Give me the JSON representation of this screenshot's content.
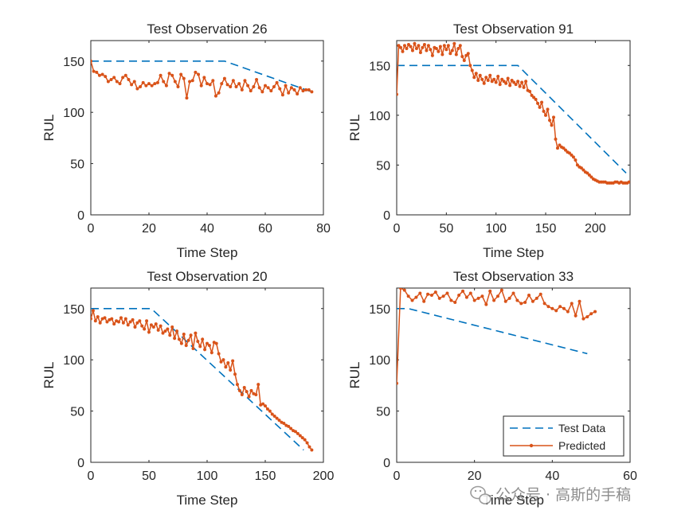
{
  "colors": {
    "test": "#0072BD",
    "predicted": "#D95319",
    "axes": "#262626"
  },
  "legend": {
    "test_label": "Test Data",
    "predicted_label": "Predicted",
    "position": "bottom-right"
  },
  "watermark": {
    "text": "公众号 · 高斯的手稿",
    "icon": "wechat-icon"
  },
  "chart_data": [
    {
      "type": "line",
      "title": "Test Observation 26",
      "xlabel": "Time Step",
      "ylabel": "RUL",
      "xlim": [
        0,
        80
      ],
      "ylim": [
        0,
        170
      ],
      "xticks": [
        0,
        20,
        40,
        60,
        80
      ],
      "yticks": [
        0,
        50,
        100,
        150
      ],
      "series": [
        {
          "name": "Test Data",
          "style": "dashed",
          "x": [
            0,
            46,
            76
          ],
          "y": [
            150,
            150,
            120
          ]
        },
        {
          "name": "Predicted",
          "style": "line-dot",
          "x_start": 0,
          "x_step": 1,
          "y": [
            150,
            140,
            139,
            136,
            137,
            135,
            130,
            132,
            134,
            130,
            128,
            134,
            136,
            132,
            127,
            130,
            123,
            125,
            129,
            126,
            128,
            126,
            128,
            129,
            136,
            130,
            126,
            138,
            136,
            130,
            125,
            137,
            133,
            114,
            130,
            131,
            139,
            137,
            126,
            134,
            128,
            127,
            131,
            116,
            119,
            128,
            133,
            127,
            125,
            131,
            125,
            128,
            122,
            131,
            126,
            121,
            125,
            132,
            124,
            120,
            126,
            124,
            121,
            125,
            129,
            123,
            117,
            126,
            119,
            124,
            122,
            118,
            124,
            121,
            122,
            122,
            120
          ]
        }
      ]
    },
    {
      "type": "line",
      "title": "Test Observation 91",
      "xlabel": "Time Step",
      "ylabel": "RUL",
      "xlim": [
        0,
        235
      ],
      "ylim": [
        0,
        175
      ],
      "xticks": [
        0,
        50,
        100,
        150,
        200
      ],
      "yticks": [
        0,
        50,
        100,
        150
      ],
      "series": [
        {
          "name": "Test Data",
          "style": "dashed",
          "x": [
            0,
            122,
            231
          ],
          "y": [
            150,
            150,
            42
          ]
        },
        {
          "name": "Predicted",
          "style": "line-dot",
          "x_start": 0,
          "x_step": 2,
          "y": [
            121,
            170,
            168,
            164,
            170,
            167,
            171,
            169,
            165,
            172,
            167,
            170,
            163,
            168,
            171,
            165,
            170,
            166,
            160,
            168,
            167,
            164,
            169,
            161,
            170,
            166,
            170,
            162,
            165,
            172,
            161,
            167,
            170,
            159,
            155,
            160,
            162,
            150,
            145,
            138,
            142,
            135,
            140,
            136,
            132,
            138,
            135,
            140,
            134,
            136,
            133,
            139,
            131,
            136,
            134,
            132,
            137,
            130,
            135,
            133,
            131,
            134,
            129,
            133,
            128,
            134,
            125,
            124,
            120,
            118,
            116,
            112,
            108,
            113,
            104,
            100,
            106,
            95,
            90,
            98,
            76,
            67,
            70,
            68,
            67,
            65,
            63,
            62,
            60,
            58,
            55,
            50,
            48,
            47,
            45,
            43,
            42,
            40,
            38,
            36,
            35,
            34,
            33,
            33,
            33,
            33,
            32,
            32,
            32,
            32,
            33,
            33,
            32,
            33,
            32,
            32,
            32,
            33
          ]
        }
      ]
    },
    {
      "type": "line",
      "title": "Test Observation 20",
      "xlabel": "Time Step",
      "ylabel": "RUL",
      "xlim": [
        0,
        200
      ],
      "ylim": [
        0,
        170
      ],
      "xticks": [
        0,
        50,
        100,
        150,
        200
      ],
      "yticks": [
        0,
        50,
        100,
        150
      ],
      "series": [
        {
          "name": "Test Data",
          "style": "dashed",
          "x": [
            0,
            52,
            183
          ],
          "y": [
            150,
            150,
            12
          ]
        },
        {
          "name": "Predicted",
          "style": "line-dot",
          "x_start": 0,
          "x_step": 2,
          "y": [
            140,
            148,
            138,
            142,
            136,
            140,
            141,
            137,
            139,
            140,
            135,
            138,
            137,
            141,
            136,
            140,
            134,
            137,
            139,
            132,
            136,
            138,
            133,
            130,
            138,
            127,
            134,
            132,
            135,
            129,
            133,
            126,
            128,
            130,
            124,
            132,
            121,
            128,
            120,
            116,
            125,
            114,
            119,
            124,
            111,
            126,
            118,
            113,
            120,
            110,
            116,
            114,
            107,
            117,
            116,
            106,
            98,
            100,
            93,
            97,
            90,
            99,
            86,
            76,
            70,
            66,
            73,
            69,
            64,
            70,
            67,
            66,
            76,
            56,
            57,
            55,
            52,
            50,
            47,
            45,
            43,
            41,
            39,
            38,
            36,
            35,
            33,
            31,
            30,
            28,
            26,
            24,
            22,
            19,
            15,
            12
          ]
        }
      ]
    },
    {
      "type": "line",
      "title": "Test Observation 33",
      "xlabel": "Time Step",
      "ylabel": "RUL",
      "xlim": [
        0,
        60
      ],
      "ylim": [
        0,
        170
      ],
      "xticks": [
        0,
        20,
        40,
        60
      ],
      "yticks": [
        0,
        50,
        100,
        150
      ],
      "series": [
        {
          "name": "Test Data",
          "style": "dashed",
          "x": [
            0,
            3,
            49
          ],
          "y": [
            150,
            150,
            106
          ]
        },
        {
          "name": "Predicted",
          "style": "line-dot",
          "x_start": 0,
          "x_step": 1,
          "y": [
            77,
            170,
            168,
            162,
            158,
            161,
            165,
            157,
            164,
            163,
            166,
            160,
            162,
            165,
            158,
            156,
            163,
            167,
            161,
            165,
            158,
            160,
            162,
            154,
            167,
            158,
            162,
            168,
            157,
            160,
            165,
            158,
            155,
            156,
            163,
            157,
            160,
            164,
            155,
            152,
            150,
            148,
            152,
            150,
            147,
            155,
            143,
            157,
            140,
            142,
            145,
            147
          ]
        }
      ]
    }
  ]
}
